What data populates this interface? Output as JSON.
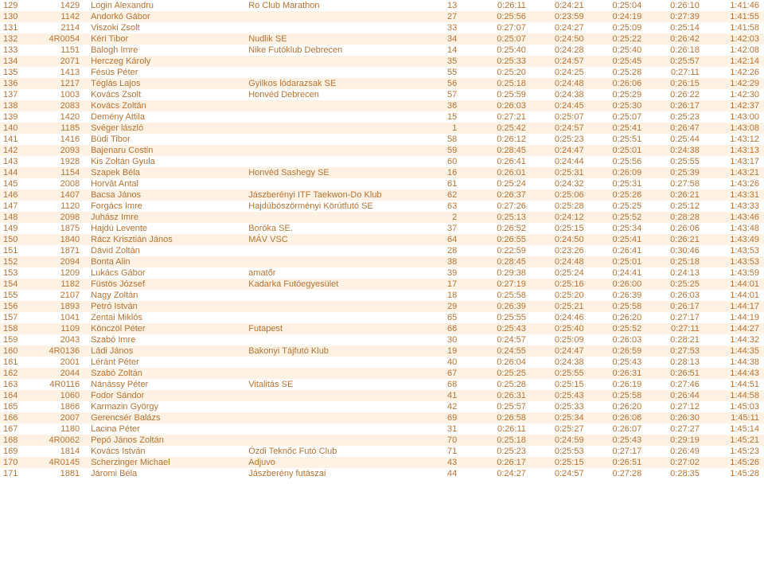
{
  "text_color": "#b87333",
  "stripe_color": "#fdf2e3",
  "rows": [
    {
      "n": "129",
      "bib": "1429",
      "name": "Login Alexandru",
      "club": "Ro Club Marathon",
      "pos": "13",
      "t1": "0:26:11",
      "t2": "0:24:21",
      "t3": "0:25:04",
      "t4": "0:26:10",
      "total": "1:41:46"
    },
    {
      "n": "130",
      "bib": "1142",
      "name": "Andorkó Gábor",
      "club": "",
      "pos": "27",
      "t1": "0:25:56",
      "t2": "0:23:59",
      "t3": "0:24:19",
      "t4": "0:27:39",
      "total": "1:41:55"
    },
    {
      "n": "131",
      "bib": "2114",
      "name": "Viszoki Zsolt",
      "club": "",
      "pos": "33",
      "t1": "0:27:07",
      "t2": "0:24:27",
      "t3": "0:25:09",
      "t4": "0:25:14",
      "total": "1:41:58"
    },
    {
      "n": "132",
      "bib": "4R0054",
      "name": "Kéri Tibor",
      "club": "Nudlik SE",
      "pos": "34",
      "t1": "0:25:07",
      "t2": "0:24:50",
      "t3": "0:25:22",
      "t4": "0:26:42",
      "total": "1:42:03"
    },
    {
      "n": "133",
      "bib": "1151",
      "name": "Balogh Imre",
      "club": "Nike Futóklub Debrecen",
      "pos": "14",
      "t1": "0:25:40",
      "t2": "0:24:28",
      "t3": "0:25:40",
      "t4": "0:26:18",
      "total": "1:42:08"
    },
    {
      "n": "134",
      "bib": "2071",
      "name": "Herczeg Károly",
      "club": "",
      "pos": "35",
      "t1": "0:25:33",
      "t2": "0:24:57",
      "t3": "0:25:45",
      "t4": "0:25:57",
      "total": "1:42:14"
    },
    {
      "n": "135",
      "bib": "1413",
      "name": "Fésüs Péter",
      "club": "",
      "pos": "55",
      "t1": "0:25:20",
      "t2": "0:24:25",
      "t3": "0:25:28",
      "t4": "0:27:11",
      "total": "1:42:26"
    },
    {
      "n": "136",
      "bib": "1217",
      "name": "Téglás Lajos",
      "club": "Gyilkos lódarazsak SE",
      "pos": "56",
      "t1": "0:25:18",
      "t2": "0:24:48",
      "t3": "0:26:06",
      "t4": "0:26:15",
      "total": "1:42:29"
    },
    {
      "n": "137",
      "bib": "1003",
      "name": "Kovács Zsolt",
      "club": "Honvéd Debrecen",
      "pos": "57",
      "t1": "0:25:59",
      "t2": "0:24:38",
      "t3": "0:25:29",
      "t4": "0:26:22",
      "total": "1:42:30"
    },
    {
      "n": "138",
      "bib": "2083",
      "name": "Kovács Zoltán",
      "club": "",
      "pos": "36",
      "t1": "0:26:03",
      "t2": "0:24:45",
      "t3": "0:25:30",
      "t4": "0:26:17",
      "total": "1:42:37"
    },
    {
      "n": "139",
      "bib": "1420",
      "name": "Demény Attila",
      "club": "",
      "pos": "15",
      "t1": "0:27:21",
      "t2": "0:25:07",
      "t3": "0:25:07",
      "t4": "0:25:23",
      "total": "1:43:00"
    },
    {
      "n": "140",
      "bib": "1185",
      "name": "Svéger lászló",
      "club": "",
      "pos": "1",
      "t1": "0:25:42",
      "t2": "0:24:57",
      "t3": "0:25:41",
      "t4": "0:26:47",
      "total": "1:43:08"
    },
    {
      "n": "141",
      "bib": "1416",
      "name": "Büdi Tibor",
      "club": "",
      "pos": "58",
      "t1": "0:26:12",
      "t2": "0:25:23",
      "t3": "0:25:51",
      "t4": "0:25:44",
      "total": "1:43:12"
    },
    {
      "n": "142",
      "bib": "2093",
      "name": "Bajenaru Costin",
      "club": "",
      "pos": "59",
      "t1": "0:28:45",
      "t2": "0:24:47",
      "t3": "0:25:01",
      "t4": "0:24:38",
      "total": "1:43:13"
    },
    {
      "n": "143",
      "bib": "1928",
      "name": "Kis Zoltán Gyula",
      "club": "",
      "pos": "60",
      "t1": "0:26:41",
      "t2": "0:24:44",
      "t3": "0:25:56",
      "t4": "0:25:55",
      "total": "1:43:17"
    },
    {
      "n": "144",
      "bib": "1154",
      "name": "Szapek Béla",
      "club": "Honvéd Sashegy SE",
      "pos": "16",
      "t1": "0:26:01",
      "t2": "0:25:31",
      "t3": "0:26:09",
      "t4": "0:25:39",
      "total": "1:43:21"
    },
    {
      "n": "145",
      "bib": "2008",
      "name": "Horvát Antal",
      "club": "",
      "pos": "61",
      "t1": "0:25:24",
      "t2": "0:24:32",
      "t3": "0:25:31",
      "t4": "0:27:58",
      "total": "1:43:26"
    },
    {
      "n": "146",
      "bib": "1407",
      "name": "Bacsa János",
      "club": "Jászberényi ITF Taekwon-Do Klub",
      "pos": "62",
      "t1": "0:26:37",
      "t2": "0:25:06",
      "t3": "0:25:26",
      "t4": "0:26:21",
      "total": "1:43:31"
    },
    {
      "n": "147",
      "bib": "1120",
      "name": "Forgács Imre",
      "club": "Hajdúböszörményi Körútfutó SE",
      "pos": "63",
      "t1": "0:27:26",
      "t2": "0:25:28",
      "t3": "0:25:25",
      "t4": "0:25:12",
      "total": "1:43:33"
    },
    {
      "n": "148",
      "bib": "2098",
      "name": "Juhász Imre",
      "club": "",
      "pos": "2",
      "t1": "0:25:13",
      "t2": "0:24:12",
      "t3": "0:25:52",
      "t4": "0:28:28",
      "total": "1:43:46"
    },
    {
      "n": "149",
      "bib": "1875",
      "name": "Hajdú Levente",
      "club": "Boróka SE.",
      "pos": "37",
      "t1": "0:26:52",
      "t2": "0:25:15",
      "t3": "0:25:34",
      "t4": "0:26:06",
      "total": "1:43:48"
    },
    {
      "n": "150",
      "bib": "1840",
      "name": "Rácz Krisztián János",
      "club": "MÁV VSC",
      "pos": "64",
      "t1": "0:26:55",
      "t2": "0:24:50",
      "t3": "0:25:41",
      "t4": "0:26:21",
      "total": "1:43:49"
    },
    {
      "n": "151",
      "bib": "1871",
      "name": "Dávid Zoltán",
      "club": "",
      "pos": "28",
      "t1": "0:22:59",
      "t2": "0:23:26",
      "t3": "0:26:41",
      "t4": "0:30:46",
      "total": "1:43:53"
    },
    {
      "n": "152",
      "bib": "2094",
      "name": "Bonta Alin",
      "club": "",
      "pos": "38",
      "t1": "0:28:45",
      "t2": "0:24:48",
      "t3": "0:25:01",
      "t4": "0:25:18",
      "total": "1:43:53"
    },
    {
      "n": "153",
      "bib": "1209",
      "name": "Lukács Gábor",
      "club": "amatőr",
      "pos": "39",
      "t1": "0:29:38",
      "t2": "0:25:24",
      "t3": "0:24:41",
      "t4": "0:24:13",
      "total": "1:43:59"
    },
    {
      "n": "154",
      "bib": "1182",
      "name": "Füstös József",
      "club": "Kadarka Futóegyesület",
      "pos": "17",
      "t1": "0:27:19",
      "t2": "0:25:16",
      "t3": "0:26:00",
      "t4": "0:25:25",
      "total": "1:44:01"
    },
    {
      "n": "155",
      "bib": "2107",
      "name": "Nagy Zoltán",
      "club": "",
      "pos": "18",
      "t1": "0:25:58",
      "t2": "0:25:20",
      "t3": "0:26:39",
      "t4": "0:26:03",
      "total": "1:44:01"
    },
    {
      "n": "156",
      "bib": "1893",
      "name": "Petró István",
      "club": "",
      "pos": "29",
      "t1": "0:26:39",
      "t2": "0:25:21",
      "t3": "0:25:58",
      "t4": "0:26:17",
      "total": "1:44:17"
    },
    {
      "n": "157",
      "bib": "1041",
      "name": "Zentai Miklós",
      "club": "",
      "pos": "65",
      "t1": "0:25:55",
      "t2": "0:24:46",
      "t3": "0:26:20",
      "t4": "0:27:17",
      "total": "1:44:19"
    },
    {
      "n": "158",
      "bib": "1109",
      "name": "Könczöl Péter",
      "club": "Futapest",
      "pos": "66",
      "t1": "0:25:43",
      "t2": "0:25:40",
      "t3": "0:25:52",
      "t4": "0:27:11",
      "total": "1:44:27"
    },
    {
      "n": "159",
      "bib": "2043",
      "name": "Szabó Imre",
      "club": "",
      "pos": "30",
      "t1": "0:24:57",
      "t2": "0:25:09",
      "t3": "0:26:03",
      "t4": "0:28:21",
      "total": "1:44:32"
    },
    {
      "n": "160",
      "bib": "4R0136",
      "name": "Ládi János",
      "club": "Bakonyi Tájfutó Klub",
      "pos": "19",
      "t1": "0:24:55",
      "t2": "0:24:47",
      "t3": "0:26:59",
      "t4": "0:27:53",
      "total": "1:44:35"
    },
    {
      "n": "161",
      "bib": "2001",
      "name": "Léránt Péter",
      "club": "",
      "pos": "40",
      "t1": "0:26:04",
      "t2": "0:24:38",
      "t3": "0:25:43",
      "t4": "0:28:13",
      "total": "1:44:38"
    },
    {
      "n": "162",
      "bib": "2044",
      "name": "Szabó Zoltán",
      "club": "",
      "pos": "67",
      "t1": "0:25:25",
      "t2": "0:25:55",
      "t3": "0:26:31",
      "t4": "0:26:51",
      "total": "1:44:43"
    },
    {
      "n": "163",
      "bib": "4R0116",
      "name": "Nánássy Péter",
      "club": "Vitalitás SE",
      "pos": "68",
      "t1": "0:25:28",
      "t2": "0:25:15",
      "t3": "0:26:19",
      "t4": "0:27:46",
      "total": "1:44:51"
    },
    {
      "n": "164",
      "bib": "1060",
      "name": "Fodor Sándor",
      "club": "",
      "pos": "41",
      "t1": "0:26:31",
      "t2": "0:25:43",
      "t3": "0:25:58",
      "t4": "0:26:44",
      "total": "1:44:58"
    },
    {
      "n": "165",
      "bib": "1866",
      "name": "Karmazin György",
      "club": "",
      "pos": "42",
      "t1": "0:25:57",
      "t2": "0:25:33",
      "t3": "0:26:20",
      "t4": "0:27:12",
      "total": "1:45:03"
    },
    {
      "n": "166",
      "bib": "2007",
      "name": "Gerencsér Balázs",
      "club": "",
      "pos": "69",
      "t1": "0:26:58",
      "t2": "0:25:34",
      "t3": "0:26:06",
      "t4": "0:26:30",
      "total": "1:45:11"
    },
    {
      "n": "167",
      "bib": "1180",
      "name": "Lacina Péter",
      "club": "",
      "pos": "31",
      "t1": "0:26:11",
      "t2": "0:25:27",
      "t3": "0:26:07",
      "t4": "0:27:27",
      "total": "1:45:14"
    },
    {
      "n": "168",
      "bib": "4R0062",
      "name": "Pepó János Zoltán",
      "club": "",
      "pos": "70",
      "t1": "0:25:18",
      "t2": "0:24:59",
      "t3": "0:25:43",
      "t4": "0:29:19",
      "total": "1:45:21"
    },
    {
      "n": "169",
      "bib": "1814",
      "name": "Kovács István",
      "club": "Ózdi Teknőc Futó Club",
      "pos": "71",
      "t1": "0:25:23",
      "t2": "0:25:53",
      "t3": "0:27:17",
      "t4": "0:26:49",
      "total": "1:45:23"
    },
    {
      "n": "170",
      "bib": "4R0145",
      "name": "Scherzinger Michael",
      "club": "Adjuvo",
      "pos": "43",
      "t1": "0:26:17",
      "t2": "0:25:15",
      "t3": "0:26:51",
      "t4": "0:27:02",
      "total": "1:45:26"
    },
    {
      "n": "171",
      "bib": "1881",
      "name": "Járomi Béla",
      "club": "Jászberény futászai",
      "pos": "44",
      "t1": "0:24:27",
      "t2": "0:24:57",
      "t3": "0:27:28",
      "t4": "0:28:35",
      "total": "1:45:28"
    }
  ]
}
